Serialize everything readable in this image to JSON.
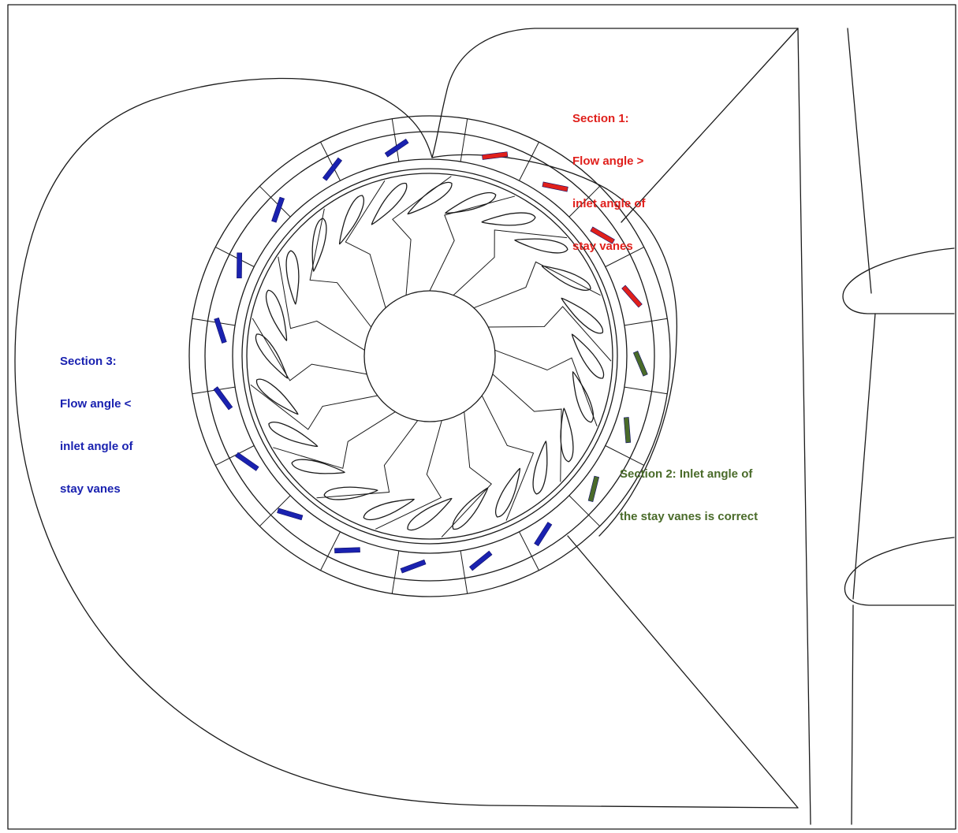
{
  "colors": {
    "line": "#1a1a1a",
    "section1": "#e0201c",
    "section2": "#4a6b2a",
    "section3": "#1a22b0",
    "vane_outline_dark": "#10106a"
  },
  "labels": {
    "section1": [
      "Section 1:",
      "Flow angle >",
      "inlet angle of",
      "stay vanes"
    ],
    "section2": [
      "Section 2: Inlet angle of",
      "the stay vanes is correct"
    ],
    "section3": [
      "Section 3:",
      "Flow angle <",
      "inlet angle of",
      "stay vanes"
    ]
  },
  "stay_vanes": {
    "section1_count": 4,
    "section2_count": 3,
    "section3_count": 12
  },
  "guide_vane_count": 24,
  "runner_blade_count": 17
}
